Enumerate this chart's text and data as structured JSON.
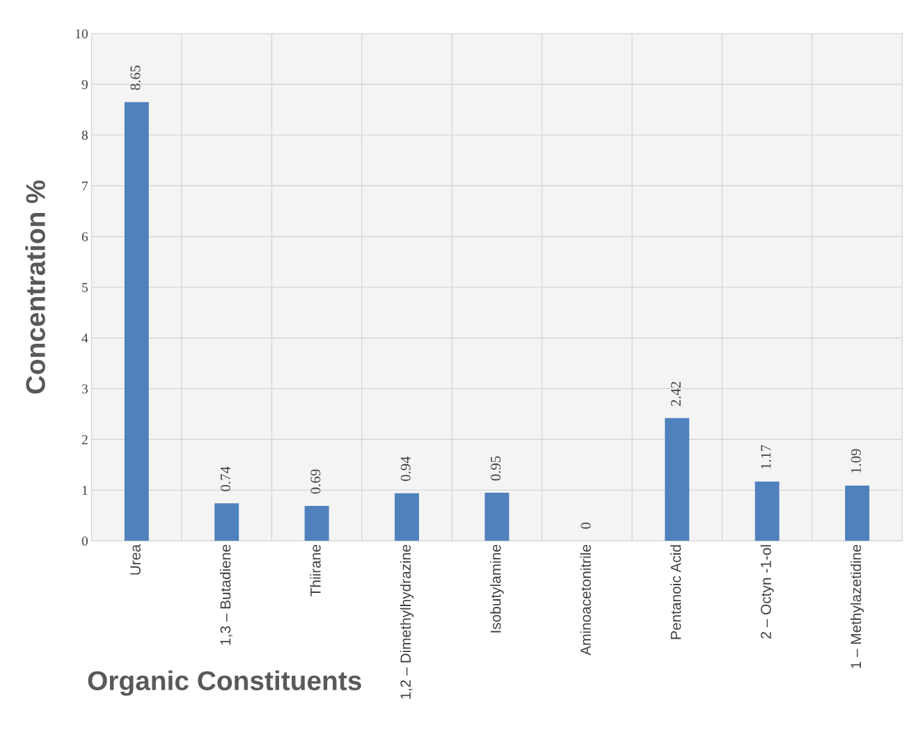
{
  "chart_data": {
    "type": "bar",
    "categories": [
      "Urea",
      "1,3 – Butadiene",
      "Thiirane",
      "1,2 – Dimethylhydrazine",
      "Isobutylamine",
      "Aminoacetonitrile",
      "Pentanoic Acid",
      "2 – Octyn -1-ol",
      "1 – Methylazetidine"
    ],
    "values": [
      8.65,
      0.74,
      0.69,
      0.94,
      0.95,
      0,
      2.42,
      1.17,
      1.09
    ],
    "color": "#4f81bd",
    "xlabel": "Organic Constituents",
    "ylabel": "Concentration %",
    "ylim": [
      0,
      10
    ],
    "yticks": [
      0,
      1,
      2,
      3,
      4,
      5,
      6,
      7,
      8,
      9,
      10
    ],
    "grid": "y",
    "data_labels": true
  }
}
